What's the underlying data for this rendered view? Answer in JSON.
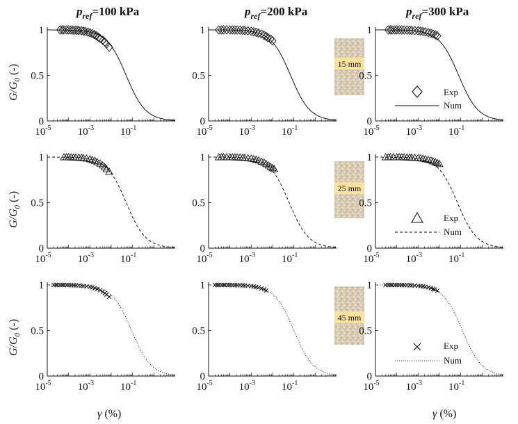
{
  "figure": {
    "column_titles": [
      {
        "p": "p",
        "sub": "ref",
        "rest": "=100 kPa"
      },
      {
        "p": "p",
        "sub": "ref",
        "rest": "=200 kPa"
      },
      {
        "p": "p",
        "sub": "ref",
        "rest": "=300 kPa"
      }
    ],
    "ylabel": {
      "main": "G/G",
      "sub": "0",
      "unit": " (-)"
    },
    "xlabel": {
      "symbol": "γ",
      "unit": " (%)"
    },
    "samples": [
      "15 mm",
      "25 mm",
      "45 mm"
    ],
    "legend": {
      "exp_label": "Exp",
      "num_label": "Num"
    }
  },
  "chart_data": [
    {
      "type": "line",
      "panel": "row1-col1",
      "xscale": "log",
      "xlim": [
        1e-05,
        10
      ],
      "ylim": [
        0,
        1
      ],
      "xticks": [
        "10",
        "10",
        "10"
      ],
      "xtick_exponents": [
        "-5",
        "-3",
        "-1"
      ],
      "yticks": [
        "0",
        "0.5",
        "1"
      ],
      "series": [
        {
          "name": "Exp",
          "marker": "diamond",
          "x": [
            4e-05,
            5e-05,
            6e-05,
            8e-05,
            0.0001,
            0.00013,
            0.00016,
            0.0002,
            0.00025,
            0.0003,
            0.0004,
            0.0005,
            0.0006,
            0.0008,
            0.001,
            0.0013,
            0.0016,
            0.002,
            0.0025,
            0.003,
            0.004,
            0.005,
            0.006,
            0.008
          ],
          "y": [
            1,
            1,
            1,
            1,
            1,
            0.999,
            0.998,
            0.997,
            0.995,
            0.993,
            0.99,
            0.986,
            0.982,
            0.975,
            0.968,
            0.958,
            0.948,
            0.935,
            0.92,
            0.905,
            0.885,
            0.865,
            0.845,
            0.81
          ]
        },
        {
          "name": "Num",
          "line": "solid",
          "gamma_ref": 0.05
        }
      ]
    },
    {
      "type": "line",
      "panel": "row1-col2",
      "xscale": "log",
      "xlim": [
        1e-05,
        10
      ],
      "ylim": [
        0,
        1
      ],
      "xticks": [
        "10",
        "10",
        "10"
      ],
      "xtick_exponents": [
        "-5",
        "-3",
        "-1"
      ],
      "yticks": [
        "0",
        "0.5",
        "1"
      ],
      "series": [
        {
          "name": "Exp",
          "marker": "diamond",
          "x": [
            3e-05,
            4e-05,
            5e-05,
            7e-05,
            0.0001,
            0.00013,
            0.00017,
            0.00022,
            0.0003,
            0.0004,
            0.0005,
            0.0007,
            0.001,
            0.0013,
            0.0017,
            0.0022,
            0.003,
            0.004,
            0.005,
            0.006,
            0.008,
            0.01
          ],
          "y": [
            1,
            1,
            1,
            1,
            1,
            1,
            0.999,
            0.998,
            0.997,
            0.995,
            0.993,
            0.99,
            0.985,
            0.98,
            0.973,
            0.965,
            0.955,
            0.94,
            0.928,
            0.915,
            0.9,
            0.88
          ]
        },
        {
          "name": "Num",
          "line": "solid",
          "gamma_ref": 0.07
        }
      ]
    },
    {
      "type": "line",
      "panel": "row1-col3",
      "xscale": "log",
      "xlim": [
        1e-05,
        10
      ],
      "ylim": [
        0,
        1
      ],
      "xticks": [
        "10",
        "10",
        "10"
      ],
      "xtick_exponents": [
        "-5",
        "-3",
        "-1"
      ],
      "yticks": [
        "0",
        "0.5",
        "1"
      ],
      "series": [
        {
          "name": "Exp",
          "marker": "diamond",
          "x": [
            4e-05,
            5e-05,
            6e-05,
            8e-05,
            0.0001,
            0.00013,
            0.00017,
            0.00022,
            0.0003,
            0.0004,
            0.0005,
            0.0007,
            0.001,
            0.0013,
            0.0017,
            0.0022,
            0.003,
            0.004,
            0.005,
            0.0065,
            0.008
          ],
          "y": [
            1,
            1,
            1,
            1,
            1,
            1,
            0.999,
            0.998,
            0.997,
            0.996,
            0.995,
            0.993,
            0.99,
            0.987,
            0.983,
            0.978,
            0.97,
            0.962,
            0.955,
            0.945,
            0.935
          ]
        },
        {
          "name": "Num",
          "line": "solid",
          "gamma_ref": 0.08
        }
      ]
    },
    {
      "type": "line",
      "panel": "row2-col1",
      "xscale": "log",
      "xlim": [
        1e-05,
        10
      ],
      "ylim": [
        0,
        1
      ],
      "xticks": [
        "10",
        "10",
        "10"
      ],
      "xtick_exponents": [
        "-5",
        "-3",
        "-1"
      ],
      "yticks": [
        "0",
        "0.5",
        "1"
      ],
      "series": [
        {
          "name": "Exp",
          "marker": "triangle",
          "x": [
            6e-05,
            8e-05,
            0.0001,
            0.00013,
            0.00017,
            0.00022,
            0.0003,
            0.0004,
            0.0005,
            0.0007,
            0.001,
            0.0013,
            0.0017,
            0.0022,
            0.003,
            0.004,
            0.005,
            0.006,
            0.008
          ],
          "y": [
            1,
            1,
            1,
            0.999,
            0.998,
            0.997,
            0.995,
            0.993,
            0.99,
            0.985,
            0.978,
            0.97,
            0.96,
            0.947,
            0.93,
            0.91,
            0.89,
            0.87,
            0.84
          ]
        },
        {
          "name": "Num",
          "line": "dashed",
          "gamma_ref": 0.05
        }
      ]
    },
    {
      "type": "line",
      "panel": "row2-col2",
      "xscale": "log",
      "xlim": [
        1e-05,
        10
      ],
      "ylim": [
        0,
        1
      ],
      "xticks": [
        "10",
        "10",
        "10"
      ],
      "xtick_exponents": [
        "-5",
        "-3",
        "-1"
      ],
      "yticks": [
        "0",
        "0.5",
        "1"
      ],
      "series": [
        {
          "name": "Exp",
          "marker": "triangle",
          "x": [
            3e-05,
            4e-05,
            5e-05,
            7e-05,
            0.0001,
            0.00013,
            0.00017,
            0.00022,
            0.0003,
            0.0004,
            0.0005,
            0.0007,
            0.001,
            0.0013,
            0.0017,
            0.0022,
            0.003,
            0.004,
            0.005,
            0.0065,
            0.008,
            0.01,
            0.012
          ],
          "y": [
            1,
            1,
            1,
            1,
            1,
            1,
            0.999,
            0.998,
            0.997,
            0.995,
            0.993,
            0.99,
            0.985,
            0.98,
            0.972,
            0.964,
            0.952,
            0.94,
            0.925,
            0.91,
            0.895,
            0.88,
            0.87
          ]
        },
        {
          "name": "Num",
          "line": "dashed",
          "gamma_ref": 0.06
        }
      ]
    },
    {
      "type": "line",
      "panel": "row2-col3",
      "xscale": "log",
      "xlim": [
        1e-05,
        10
      ],
      "ylim": [
        0,
        1
      ],
      "xticks": [
        "10",
        "10",
        "10"
      ],
      "xtick_exponents": [
        "-5",
        "-3",
        "-1"
      ],
      "yticks": [
        "0",
        "0.5",
        "1"
      ],
      "series": [
        {
          "name": "Exp",
          "marker": "triangle",
          "x": [
            3e-05,
            4e-05,
            5e-05,
            7e-05,
            0.0001,
            0.00013,
            0.00017,
            0.00022,
            0.0003,
            0.0004,
            0.0005,
            0.0007,
            0.001,
            0.0013,
            0.0017,
            0.0022,
            0.003,
            0.004,
            0.005,
            0.0065,
            0.008,
            0.01
          ],
          "y": [
            1,
            1,
            1,
            1,
            1,
            1,
            1,
            0.999,
            0.998,
            0.997,
            0.996,
            0.994,
            0.991,
            0.988,
            0.984,
            0.979,
            0.972,
            0.964,
            0.955,
            0.945,
            0.935,
            0.925
          ]
        },
        {
          "name": "Num",
          "line": "dashed",
          "gamma_ref": 0.07
        }
      ]
    },
    {
      "type": "line",
      "panel": "row3-col1",
      "xscale": "log",
      "xlim": [
        1e-05,
        10
      ],
      "ylim": [
        0,
        1
      ],
      "xticks": [
        "10",
        "10",
        "10"
      ],
      "xtick_exponents": [
        "-5",
        "-3",
        "-1"
      ],
      "yticks": [
        "0",
        "0.5",
        "1"
      ],
      "series": [
        {
          "name": "Exp",
          "marker": "cross",
          "x": [
            2e-05,
            2.5e-05,
            3e-05,
            4e-05,
            5e-05,
            6e-05,
            8e-05,
            0.0001,
            0.00013,
            0.00017,
            0.00022,
            0.0003,
            0.0004,
            0.0005,
            0.0007,
            0.001,
            0.0013,
            0.0017,
            0.0022,
            0.003,
            0.004,
            0.005,
            0.006,
            0.008
          ],
          "y": [
            1,
            1,
            1,
            1,
            1,
            1,
            1,
            0.999,
            0.998,
            0.997,
            0.996,
            0.995,
            0.993,
            0.99,
            0.986,
            0.98,
            0.973,
            0.965,
            0.955,
            0.942,
            0.925,
            0.91,
            0.895,
            0.87
          ]
        },
        {
          "name": "Num",
          "line": "dotted",
          "gamma_ref": 0.09
        }
      ]
    },
    {
      "type": "line",
      "panel": "row3-col2",
      "xscale": "log",
      "xlim": [
        1e-05,
        10
      ],
      "ylim": [
        0,
        1
      ],
      "xticks": [
        "10",
        "10",
        "10"
      ],
      "xtick_exponents": [
        "-5",
        "-3",
        "-1"
      ],
      "yticks": [
        "0",
        "0.5",
        "1"
      ],
      "series": [
        {
          "name": "Exp",
          "marker": "cross",
          "x": [
            2e-05,
            2.5e-05,
            3e-05,
            4e-05,
            5e-05,
            6e-05,
            8e-05,
            0.0001,
            0.00013,
            0.00017,
            0.00022,
            0.0003,
            0.0004,
            0.0005,
            0.0007,
            0.001,
            0.0013,
            0.0017,
            0.0022,
            0.003,
            0.004,
            0.005
          ],
          "y": [
            1,
            1,
            1,
            1,
            1,
            1,
            1,
            1,
            0.999,
            0.998,
            0.998,
            0.997,
            0.996,
            0.994,
            0.992,
            0.988,
            0.984,
            0.978,
            0.972,
            0.962,
            0.952,
            0.94
          ]
        },
        {
          "name": "Num",
          "line": "dotted",
          "gamma_ref": 0.1
        }
      ]
    },
    {
      "type": "line",
      "panel": "row3-col3",
      "xscale": "log",
      "xlim": [
        1e-05,
        10
      ],
      "ylim": [
        0,
        1
      ],
      "xticks": [
        "10",
        "10",
        "10"
      ],
      "xtick_exponents": [
        "-5",
        "-3",
        "-1"
      ],
      "yticks": [
        "0",
        "0.5",
        "1"
      ],
      "series": [
        {
          "name": "Exp",
          "marker": "cross",
          "x": [
            3e-05,
            4e-05,
            5e-05,
            6e-05,
            8e-05,
            0.0001,
            0.00013,
            0.00017,
            0.00022,
            0.0003,
            0.0004,
            0.0005,
            0.0007,
            0.001,
            0.0013,
            0.0017,
            0.0022,
            0.003,
            0.004,
            0.005,
            0.006,
            0.008
          ],
          "y": [
            1,
            1,
            1,
            1,
            1,
            1,
            1,
            0.999,
            0.999,
            0.998,
            0.997,
            0.996,
            0.994,
            0.992,
            0.989,
            0.985,
            0.98,
            0.973,
            0.965,
            0.957,
            0.95,
            0.938
          ]
        },
        {
          "name": "Num",
          "line": "dotted",
          "gamma_ref": 0.12
        }
      ]
    }
  ]
}
